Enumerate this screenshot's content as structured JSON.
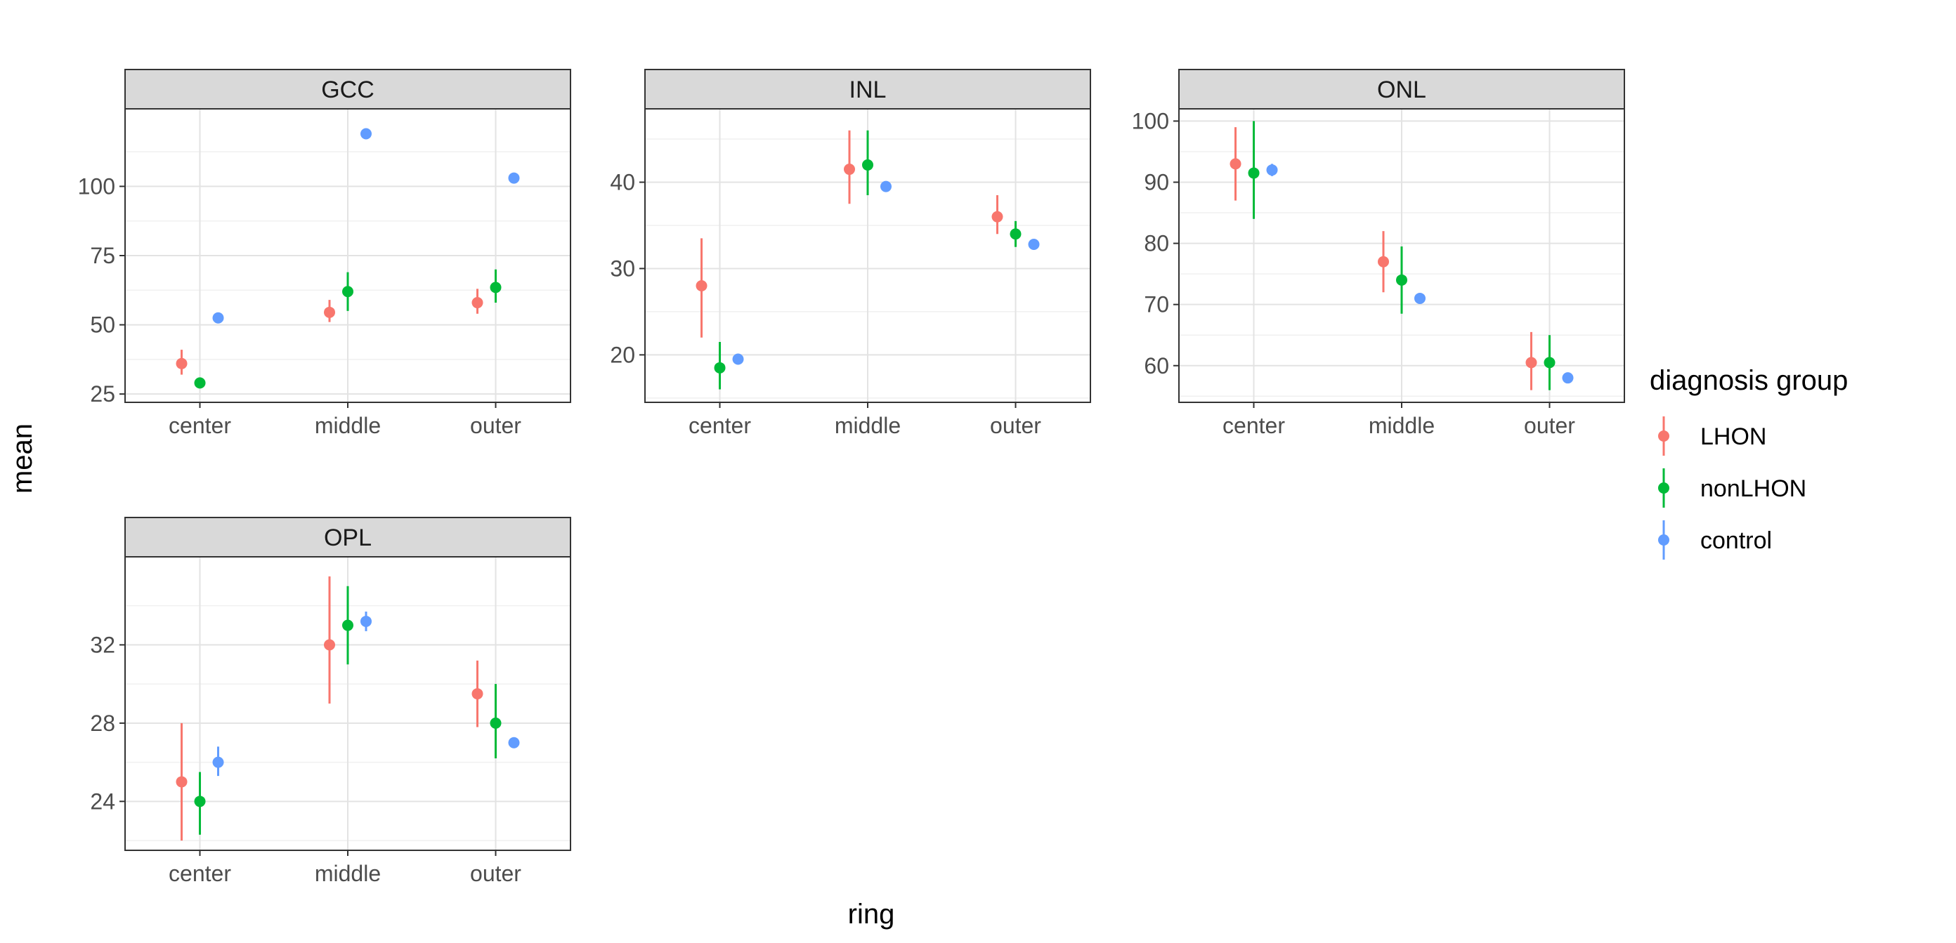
{
  "chart_data": {
    "type": "scatter",
    "subtype": "point-range facet",
    "xlabel": "ring",
    "ylabel": "mean",
    "categories": [
      "center",
      "middle",
      "outer"
    ],
    "legend": {
      "title": "diagnosis group",
      "placement": "right",
      "entries": [
        {
          "name": "LHON",
          "color": "#F8766D"
        },
        {
          "name": "nonLHON",
          "color": "#00BA38"
        },
        {
          "name": "control",
          "color": "#619CFF"
        }
      ]
    },
    "grid": true,
    "panels": [
      {
        "title": "GCC",
        "ylim": [
          22,
          128
        ],
        "yticks": [
          25,
          50,
          75,
          100
        ],
        "series": [
          {
            "name": "LHON",
            "values": [
              36,
              54.5,
              58
            ],
            "lower": [
              32,
              51,
              54
            ],
            "upper": [
              41,
              59,
              63
            ]
          },
          {
            "name": "nonLHON",
            "values": [
              29,
              62,
              63.5
            ],
            "lower": [
              28,
              55,
              58
            ],
            "upper": [
              30,
              69,
              70
            ]
          },
          {
            "name": "control",
            "values": [
              52.5,
              119,
              103
            ],
            "lower": [
              52,
              118.5,
              102.5
            ],
            "upper": [
              53,
              119.5,
              103.5
            ]
          }
        ]
      },
      {
        "title": "INL",
        "ylim": [
          14.5,
          48.5
        ],
        "yticks": [
          20,
          30,
          40
        ],
        "series": [
          {
            "name": "LHON",
            "values": [
              28,
              41.5,
              36
            ],
            "lower": [
              22,
              37.5,
              34
            ],
            "upper": [
              33.5,
              46,
              38.5
            ]
          },
          {
            "name": "nonLHON",
            "values": [
              18.5,
              42,
              34
            ],
            "lower": [
              16,
              38.5,
              32.5
            ],
            "upper": [
              21.5,
              46,
              35.5
            ]
          },
          {
            "name": "control",
            "values": [
              19.5,
              39.5,
              32.8
            ],
            "lower": [
              19,
              39.2,
              32.5
            ],
            "upper": [
              20,
              39.8,
              33.1
            ]
          }
        ]
      },
      {
        "title": "ONL",
        "ylim": [
          54,
          102
        ],
        "yticks": [
          60,
          70,
          80,
          90,
          100
        ],
        "series": [
          {
            "name": "LHON",
            "values": [
              93,
              77,
              60.5
            ],
            "lower": [
              87,
              72,
              56
            ],
            "upper": [
              99,
              82,
              65.5
            ]
          },
          {
            "name": "nonLHON",
            "values": [
              91.5,
              74,
              60.5
            ],
            "lower": [
              84,
              68.5,
              56
            ],
            "upper": [
              100,
              79.5,
              65
            ]
          },
          {
            "name": "control",
            "values": [
              92,
              71,
              58
            ],
            "lower": [
              91,
              70.3,
              57.5
            ],
            "upper": [
              93,
              71.8,
              58.5
            ]
          }
        ]
      },
      {
        "title": "OPL",
        "ylim": [
          21.5,
          36.5
        ],
        "yticks": [
          24,
          28,
          32
        ],
        "series": [
          {
            "name": "LHON",
            "values": [
              25,
              32,
              29.5
            ],
            "lower": [
              22,
              29,
              27.8
            ],
            "upper": [
              28,
              35.5,
              31.2
            ]
          },
          {
            "name": "nonLHON",
            "values": [
              24,
              33,
              28
            ],
            "lower": [
              22.3,
              31,
              26.2
            ],
            "upper": [
              25.5,
              35,
              30
            ]
          },
          {
            "name": "control",
            "values": [
              26,
              33.2,
              27
            ],
            "lower": [
              25.3,
              32.7,
              26.8
            ],
            "upper": [
              26.8,
              33.7,
              27.2
            ]
          }
        ]
      }
    ]
  }
}
